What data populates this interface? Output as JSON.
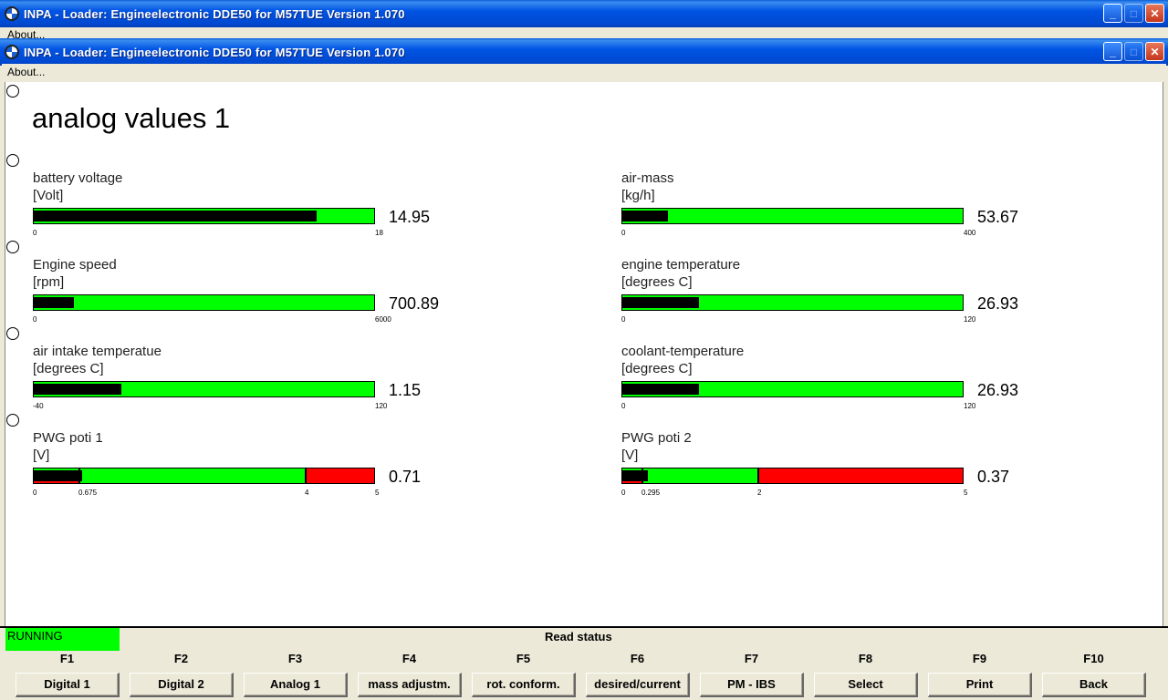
{
  "window": {
    "title": "INPA - Loader:  Engineelectronic DDE50 for M57TUE Version 1.070",
    "menu_about": "About..."
  },
  "page_title": "analog values 1",
  "gauges": [
    {
      "name": "battery voltage",
      "unit": "[Volt]",
      "value": "14.95",
      "min": 0,
      "max": 18,
      "min_label": "0",
      "max_label": "18",
      "fill": 0.83
    },
    {
      "name": "air-mass",
      "unit": "[kg/h]",
      "value": "53.67",
      "min": 0,
      "max": 400,
      "min_label": "0",
      "max_label": "400",
      "fill": 0.134
    },
    {
      "name": "Engine speed",
      "unit": "[rpm]",
      "value": "700.89",
      "min": 0,
      "max": 6000,
      "min_label": "0",
      "max_label": "6000",
      "fill": 0.117
    },
    {
      "name": "engine temperature",
      "unit": "[degrees C]",
      "value": "26.93",
      "min": 0,
      "max": 120,
      "min_label": "0",
      "max_label": "120",
      "fill": 0.224
    },
    {
      "name": "air intake temperatue",
      "unit": "[degrees C]",
      "value": "1.15",
      "min": -40,
      "max": 120,
      "min_label": "-40",
      "max_label": "120",
      "fill": 0.257
    },
    {
      "name": "coolant-temperature",
      "unit": "[degrees C]",
      "value": "26.93",
      "min": 0,
      "max": 120,
      "min_label": "0",
      "max_label": "120",
      "fill": 0.224
    },
    {
      "name": "PWG poti 1",
      "unit": "[V]",
      "value": "0.71",
      "min": 0,
      "max": 5,
      "min_label": "0",
      "mid_label": "0.675",
      "thr_label": "4",
      "max_label": "5",
      "fill": 0.142,
      "mid": 0.675,
      "threshold": 4
    },
    {
      "name": "PWG poti 2",
      "unit": "[V]",
      "value": "0.37",
      "min": 0,
      "max": 5,
      "min_label": "0",
      "mid_label": "0.295",
      "thr_label": "2",
      "max_label": "5",
      "fill": 0.074,
      "mid": 0.295,
      "threshold": 2
    }
  ],
  "status": {
    "running": "RUNNING",
    "read_status": "Read status"
  },
  "fkeys": [
    {
      "key": "F1",
      "label": "Digital 1"
    },
    {
      "key": "F2",
      "label": "Digital 2"
    },
    {
      "key": "F3",
      "label": "Analog 1"
    },
    {
      "key": "F4",
      "label": "mass adjustm."
    },
    {
      "key": "F5",
      "label": "rot. conform."
    },
    {
      "key": "F6",
      "label": "desired/current"
    },
    {
      "key": "F7",
      "label": "PM - IBS"
    },
    {
      "key": "F8",
      "label": "Select"
    },
    {
      "key": "F9",
      "label": "Print"
    },
    {
      "key": "F10",
      "label": "Back"
    }
  ],
  "colors": {
    "bar_green": "#00ff00",
    "bar_red": "#ff0000",
    "fill_black": "#000000",
    "running_bg": "#00ff00"
  }
}
